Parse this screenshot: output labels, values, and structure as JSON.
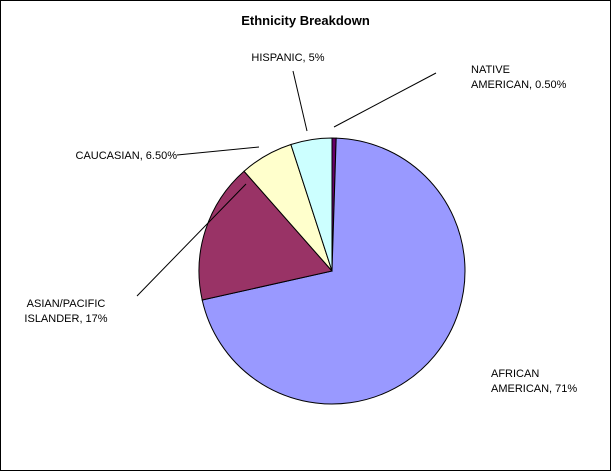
{
  "chart_data": {
    "type": "pie",
    "title": "Ethnicity Breakdown",
    "categories": [
      "NATIVE AMERICAN",
      "AFRICAN AMERICAN",
      "ASIAN/PACIFIC ISLANDER",
      "CAUCASIAN",
      "HISPANIC"
    ],
    "values": [
      0.5,
      71,
      17,
      6.5,
      5
    ],
    "colors": [
      "#660066",
      "#9999ff",
      "#993366",
      "#ffffcc",
      "#ccffff"
    ],
    "labels": [
      [
        "NATIVE",
        "AMERICAN, 0.50%"
      ],
      [
        "AFRICAN",
        "AMERICAN, 71%"
      ],
      [
        "ASIAN/PACIFIC",
        "ISLANDER, 17%"
      ],
      [
        "CAUCASIAN, 6.50%"
      ],
      [
        "HISPANIC, 5%"
      ]
    ],
    "legend": false,
    "start_angle": "12 o'clock",
    "direction": "clockwise"
  }
}
